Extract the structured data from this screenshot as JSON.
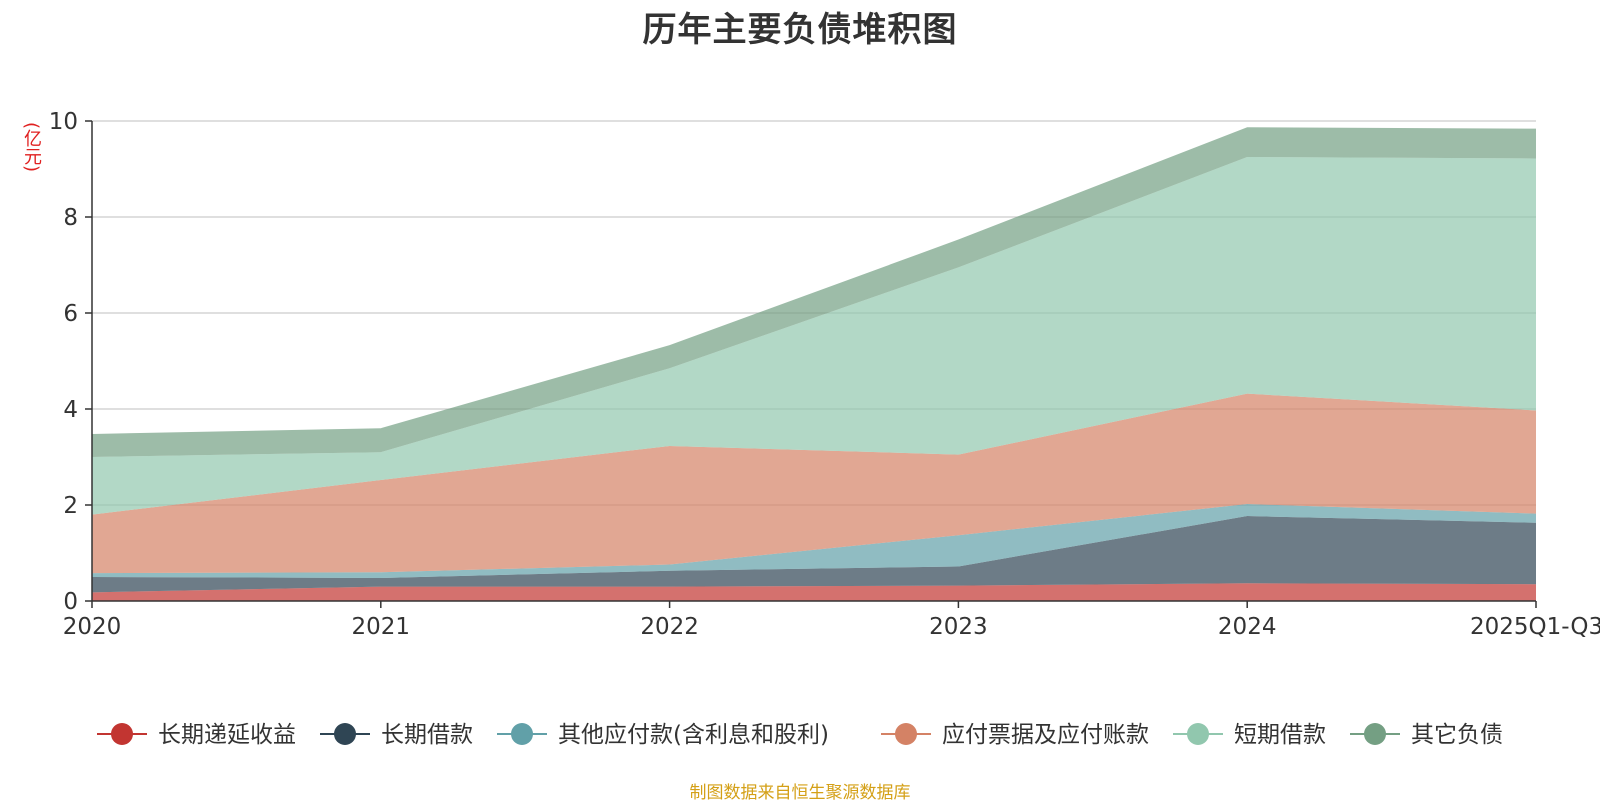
{
  "chart_data": {
    "type": "area",
    "stacked": true,
    "title": "历年主要负债堆积图",
    "ylabel": "(亿元)",
    "ylim": [
      0,
      10
    ],
    "yticks": [
      0,
      2,
      4,
      6,
      8,
      10
    ],
    "categories": [
      "2020",
      "2021",
      "2022",
      "2023",
      "2024",
      "2025Q1-Q3"
    ],
    "series": [
      {
        "name": "长期递延收益",
        "color": "#c23531",
        "values": [
          0.18,
          0.3,
          0.3,
          0.32,
          0.37,
          0.35
        ]
      },
      {
        "name": "长期借款",
        "color": "#2f4554",
        "values": [
          0.32,
          0.18,
          0.33,
          0.4,
          1.4,
          1.28
        ]
      },
      {
        "name": "其他应付款(含利息和股利)",
        "color": "#61a0a8",
        "values": [
          0.08,
          0.12,
          0.13,
          0.65,
          0.25,
          0.19
        ]
      },
      {
        "name": "应付票据及应付账款",
        "color": "#d48265",
        "values": [
          1.22,
          1.92,
          2.47,
          1.68,
          2.3,
          2.15
        ]
      },
      {
        "name": "短期借款",
        "color": "#91c7ae",
        "values": [
          1.2,
          0.58,
          1.62,
          3.9,
          4.93,
          5.25
        ]
      },
      {
        "name": "其它负债",
        "color": "#749f83",
        "values": [
          0.48,
          0.5,
          0.48,
          0.58,
          0.62,
          0.62
        ]
      }
    ],
    "legend_position": "bottom"
  },
  "footer": {
    "source": "制图数据来自恒生聚源数据库"
  }
}
